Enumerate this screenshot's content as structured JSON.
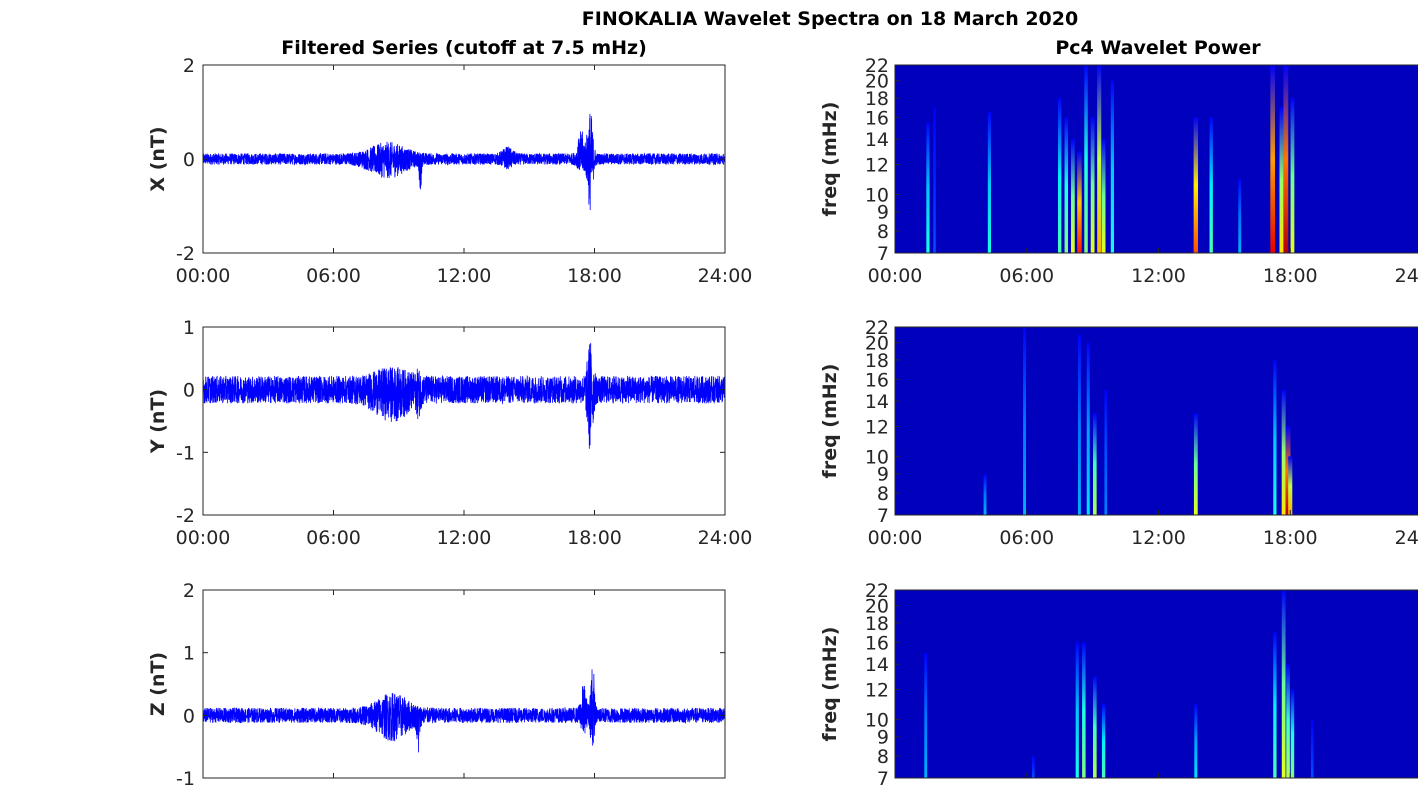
{
  "chart_data": {
    "type": "line+heatmap",
    "title": "FINOKALIA Wavelet Spectra on 18 March 2020",
    "left_title": "Filtered Series (cutoff at 7.5 mHz)",
    "right_title": "Pc4 Wavelet Power",
    "x_ticks": [
      "00:00",
      "06:00",
      "12:00",
      "18:00",
      "24:00"
    ],
    "x_range_hours": [
      0,
      24
    ],
    "series": [
      {
        "name": "X",
        "ylabel": "X (nT)",
        "ylim": [
          -2,
          2
        ],
        "y_ticks": [
          "-2",
          "0",
          "2"
        ],
        "y_tick_values": [
          -2,
          0,
          2
        ],
        "color": "#0000ff",
        "baseline_amplitude": 0.12,
        "events": [
          {
            "t": 8.5,
            "width_h": 1.0,
            "up": 0.25,
            "down": 0.3
          },
          {
            "t": 10.0,
            "width_h": 0.08,
            "up": 0.0,
            "down": 0.5
          },
          {
            "t": 14.0,
            "width_h": 0.3,
            "up": 0.15,
            "down": 0.1
          },
          {
            "t": 17.4,
            "width_h": 0.2,
            "up": 0.5,
            "down": 0.2
          },
          {
            "t": 17.8,
            "width_h": 0.15,
            "up": 0.95,
            "down": 1.0
          }
        ]
      },
      {
        "name": "Y",
        "ylabel": "Y (nT)",
        "ylim": [
          -2,
          1
        ],
        "y_ticks": [
          "-2",
          "-1",
          "0",
          "1"
        ],
        "y_tick_values": [
          -2,
          -1,
          0,
          1
        ],
        "color": "#0000ff",
        "baseline_amplitude": 0.22,
        "events": [
          {
            "t": 8.7,
            "width_h": 1.0,
            "up": 0.15,
            "down": 0.3
          },
          {
            "t": 9.9,
            "width_h": 0.1,
            "up": 0.1,
            "down": 0.2
          },
          {
            "t": 17.8,
            "width_h": 0.15,
            "up": 0.6,
            "down": 0.85
          }
        ]
      },
      {
        "name": "Z",
        "ylabel": "Z (nT)",
        "ylim": [
          -1,
          2
        ],
        "y_ticks": [
          "-1",
          "0",
          "1",
          "2"
        ],
        "y_tick_values": [
          -1,
          0,
          1,
          2
        ],
        "color": "#0000ff",
        "baseline_amplitude": 0.12,
        "events": [
          {
            "t": 8.7,
            "width_h": 0.9,
            "up": 0.25,
            "down": 0.3
          },
          {
            "t": 9.9,
            "width_h": 0.08,
            "up": 0.0,
            "down": 0.55
          },
          {
            "t": 17.5,
            "width_h": 0.15,
            "up": 0.4,
            "down": 0.2
          },
          {
            "t": 17.9,
            "width_h": 0.1,
            "up": 0.95,
            "down": 0.5
          }
        ]
      }
    ],
    "spectra": {
      "ylabel": "freq (mHz)",
      "y_scale": "log",
      "ylim": [
        7,
        22
      ],
      "y_ticks": [
        7,
        8,
        9,
        10,
        12,
        14,
        16,
        18,
        20,
        22
      ],
      "colormap": "jet",
      "panels": [
        {
          "name": "X",
          "bursts": [
            [
              1.5,
              15.5,
              0.4
            ],
            [
              1.8,
              17,
              0.2
            ],
            [
              4.3,
              16.5,
              0.4
            ],
            [
              7.5,
              18,
              0.45
            ],
            [
              7.8,
              16,
              0.5
            ],
            [
              8.1,
              14,
              0.6
            ],
            [
              8.4,
              13,
              0.85
            ],
            [
              8.7,
              22,
              0.5
            ],
            [
              9.0,
              16,
              0.6
            ],
            [
              9.3,
              22,
              0.7
            ],
            [
              9.5,
              14,
              0.6
            ],
            [
              9.9,
              20,
              0.4
            ],
            [
              13.7,
              16,
              0.8
            ],
            [
              14.4,
              16,
              0.45
            ],
            [
              15.7,
              11,
              0.3
            ],
            [
              17.2,
              22,
              0.9
            ],
            [
              17.6,
              17,
              0.65
            ],
            [
              17.8,
              22,
              0.95
            ],
            [
              18.1,
              18,
              0.6
            ],
            [
              23.9,
              10,
              0.2
            ]
          ]
        },
        {
          "name": "Y",
          "bursts": [
            [
              5.9,
              22,
              0.3
            ],
            [
              4.1,
              9,
              0.3
            ],
            [
              8.4,
              21,
              0.3
            ],
            [
              8.8,
              20,
              0.35
            ],
            [
              9.1,
              13,
              0.55
            ],
            [
              9.6,
              15,
              0.25
            ],
            [
              13.7,
              13,
              0.6
            ],
            [
              17.3,
              18,
              0.4
            ],
            [
              17.7,
              15,
              0.65
            ],
            [
              17.9,
              12,
              0.95
            ],
            [
              18.0,
              10,
              0.7
            ]
          ]
        },
        {
          "name": "Z",
          "bursts": [
            [
              1.4,
              15,
              0.3
            ],
            [
              6.3,
              8,
              0.2
            ],
            [
              8.3,
              16,
              0.4
            ],
            [
              8.6,
              16,
              0.5
            ],
            [
              9.1,
              13,
              0.55
            ],
            [
              9.5,
              11,
              0.45
            ],
            [
              13.7,
              11,
              0.35
            ],
            [
              17.3,
              17,
              0.45
            ],
            [
              17.7,
              22,
              0.6
            ],
            [
              17.9,
              14,
              0.55
            ],
            [
              18.1,
              12,
              0.5
            ],
            [
              19.0,
              10,
              0.2
            ]
          ]
        }
      ]
    }
  }
}
